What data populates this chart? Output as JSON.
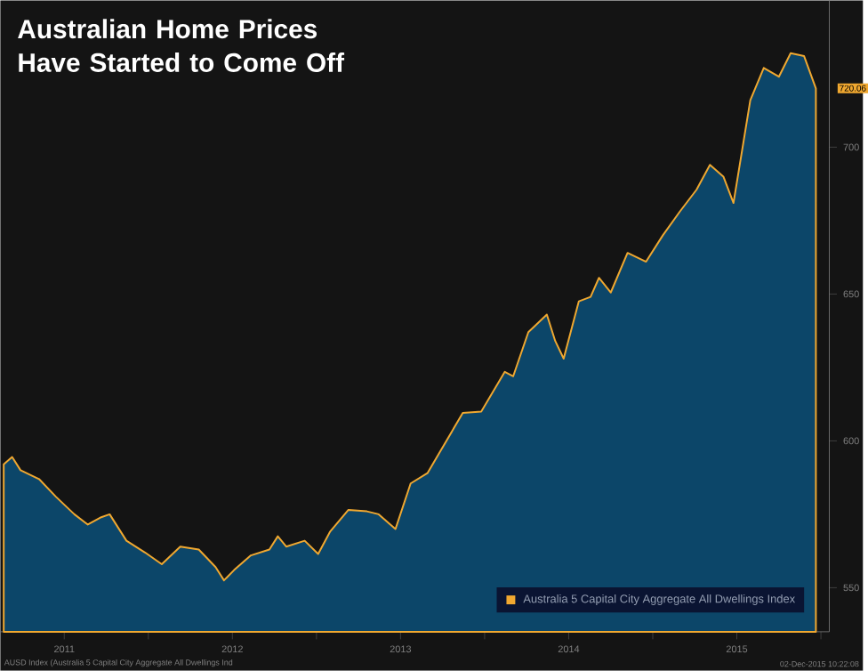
{
  "chart_data": {
    "type": "area",
    "title": "Australian Home Prices Have Started to Come Off",
    "x": [
      2011.14,
      2011.19,
      2011.24,
      2011.35,
      2011.45,
      2011.56,
      2011.64,
      2011.72,
      2011.77,
      2011.87,
      2011.98,
      2012.08,
      2012.19,
      2012.3,
      2012.4,
      2012.45,
      2012.51,
      2012.61,
      2012.72,
      2012.77,
      2012.82,
      2012.93,
      2013.01,
      2013.08,
      2013.19,
      2013.3,
      2013.37,
      2013.47,
      2013.56,
      2013.66,
      2013.87,
      2013.98,
      2014.12,
      2014.17,
      2014.26,
      2014.37,
      2014.42,
      2014.47,
      2014.56,
      2014.63,
      2014.68,
      2014.75,
      2014.85,
      2014.96,
      2015.06,
      2015.16,
      2015.26,
      2015.34,
      2015.42,
      2015.48,
      2015.54,
      2015.58,
      2015.66,
      2015.75,
      2015.82,
      2015.9,
      2015.97
    ],
    "series": [
      {
        "name": "Australia 5 Capital City Aggregate All Dwellings Index",
        "color": "#f0a830",
        "values": [
          592,
          594.5,
          590,
          587,
          581,
          575,
          571.5,
          574,
          575,
          566,
          562,
          558,
          564,
          563,
          557,
          552.5,
          556,
          561,
          563,
          567.5,
          564,
          566,
          561.5,
          569,
          576.5,
          576,
          575,
          570,
          585.5,
          589,
          609.5,
          610,
          623.5,
          622,
          637,
          643,
          634,
          628,
          647.5,
          649,
          655.5,
          650.5,
          664,
          661,
          670,
          678,
          685.5,
          694,
          690,
          681,
          702,
          716,
          727,
          724,
          732,
          731,
          720
        ]
      }
    ],
    "xlim": [
      2011.12,
      2016.05
    ],
    "ylim": [
      535,
      750
    ],
    "xticks": [
      {
        "value": 2011.5,
        "label": "2011"
      },
      {
        "value": 2012,
        "label": null
      },
      {
        "value": 2012.5,
        "label": "2012"
      },
      {
        "value": 2013,
        "label": null
      },
      {
        "value": 2013.5,
        "label": "2013"
      },
      {
        "value": 2014,
        "label": null
      },
      {
        "value": 2014.5,
        "label": "2014"
      },
      {
        "value": 2015,
        "label": null
      },
      {
        "value": 2015.5,
        "label": "2015"
      },
      {
        "value": 2016,
        "label": null
      }
    ],
    "yticks": [
      550,
      600,
      650,
      700
    ],
    "legend": "bottom right",
    "grid": false,
    "marker": "none",
    "line_style": "solid",
    "annotations": [
      {
        "text": "720.06",
        "x": 2015.97,
        "y": 720.06
      },
      "AUSD Index (Australia 5 Capital City Aggregate All Dwellings Ind",
      "02-Dec-2015 10:22:08"
    ]
  }
}
